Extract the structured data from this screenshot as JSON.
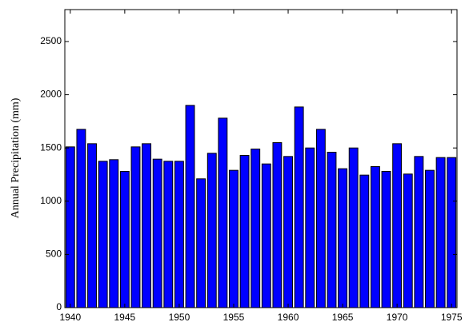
{
  "chart_data": {
    "type": "bar",
    "y_label": "Annual Precipitation (mm)",
    "x": [
      1940,
      1941,
      1942,
      1943,
      1944,
      1945,
      1946,
      1947,
      1948,
      1949,
      1950,
      1951,
      1952,
      1953,
      1954,
      1955,
      1956,
      1957,
      1958,
      1959,
      1960,
      1961,
      1962,
      1963,
      1964,
      1965,
      1966,
      1967,
      1968,
      1969,
      1970,
      1971,
      1972,
      1973,
      1974,
      1975
    ],
    "values": [
      1510,
      1675,
      1540,
      1375,
      1390,
      1280,
      1510,
      1540,
      1395,
      1375,
      1375,
      1900,
      1210,
      1450,
      1780,
      1290,
      1430,
      1490,
      1350,
      1550,
      1420,
      1885,
      1500,
      1675,
      1460,
      1305,
      1500,
      1245,
      1325,
      1280,
      1540,
      1255,
      1420,
      1290,
      1410,
      1410
    ],
    "color": "#0000ff",
    "xlim": [
      1939.5,
      1975.5
    ],
    "xticks": [
      1940,
      1945,
      1950,
      1955,
      1960,
      1965,
      1970,
      1975
    ],
    "ylim": [
      0,
      2800
    ],
    "yticks": [
      0,
      500,
      1000,
      1500,
      2000,
      2500
    ],
    "grid": false
  }
}
